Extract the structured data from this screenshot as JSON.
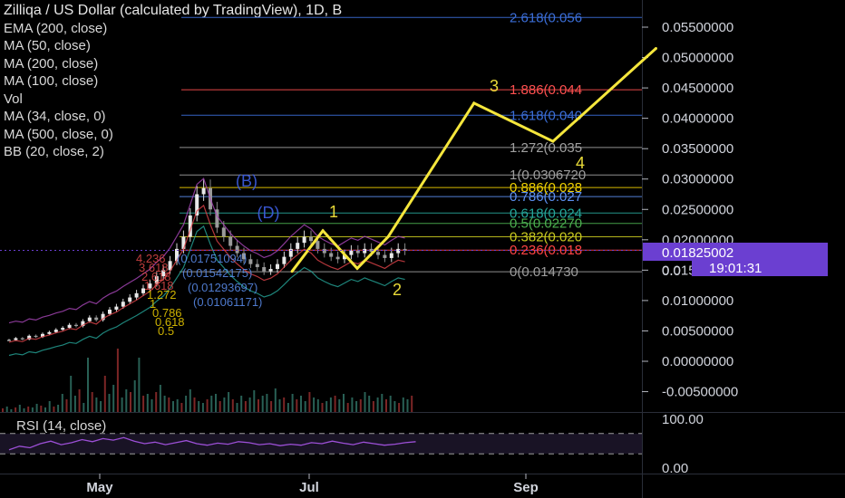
{
  "legend": {
    "title": "Zilliqa / US Dollar (calculated by TradingView), 1D, B",
    "indicators": [
      "EMA (200, close)",
      "MA (50, close)",
      "MA (200, close)",
      "MA (100, close)",
      "Vol",
      "MA (34, close, 0)",
      "MA (500, close, 0)",
      "BB (20, close, 2)"
    ]
  },
  "colors": {
    "background": "#000000",
    "price_line": "#e6d840",
    "last_price_badge": "#6b3fd1",
    "fib_0": "#9e9e9e",
    "fib_0236": "#ff4444",
    "fib_0382": "#c8c820",
    "fib_05": "#4caf50",
    "fib_0618": "#26a69a",
    "fib_0786": "#5c8ff0",
    "fib_0886": "#f0d000",
    "fib_1": "#9e9e9e",
    "fib_1272": "#a0a0a0",
    "fib_1618": "#3b6ed8",
    "fib_1886": "#ff5050",
    "wave": "#f5e63c",
    "rsi": "#9c4fd6"
  },
  "chart_data": {
    "type": "line",
    "title": "Zilliqa / US Dollar (calculated by TradingView), 1D, B",
    "y_axis": {
      "ylim": [
        -0.0085,
        0.058
      ],
      "tick_labels": [
        "0.05500000",
        "0.05000000",
        "0.04500000",
        "0.04000000",
        "0.03500000",
        "0.03000000",
        "0.02500000",
        "0.02000000",
        "0.01500000",
        "0.01000000",
        "0.00500000",
        "0.00000000",
        "-0.00500000"
      ],
      "ticks": [
        0.055,
        0.05,
        0.045,
        0.04,
        0.035,
        0.03,
        0.025,
        0.02,
        0.015,
        0.01,
        0.005,
        0.0,
        -0.005
      ]
    },
    "x_axis": {
      "tick_labels": [
        "May",
        "Jul",
        "Sep"
      ]
    },
    "last_price": {
      "label": "0.01825002",
      "value": 0.01825002,
      "countdown": "19:01:31",
      "partial_label": "0.0"
    },
    "fib_levels": [
      {
        "ratio": "0",
        "label": "0(0.014730",
        "value": 0.01473
      },
      {
        "ratio": "0.236",
        "label": "0.236(0.018",
        "value": 0.0183
      },
      {
        "ratio": "0.382",
        "label": "0.382(0.020",
        "value": 0.0205
      },
      {
        "ratio": "0.5",
        "label": "0.5(0.02270",
        "value": 0.0227
      },
      {
        "ratio": "0.618",
        "label": "0.618(0.024",
        "value": 0.0244
      },
      {
        "ratio": "0.786",
        "label": "0.786(0.027",
        "value": 0.0271
      },
      {
        "ratio": "0.886",
        "label": "0.886(0.028",
        "value": 0.0286
      },
      {
        "ratio": "1",
        "label": "1(0.0306720",
        "value": 0.03067
      },
      {
        "ratio": "1.272",
        "label": "1.272(0.035",
        "value": 0.0352
      },
      {
        "ratio": "1.618",
        "label": "1.618(0.040",
        "value": 0.0405
      },
      {
        "ratio": "1.886",
        "label": "1.886(0.044",
        "value": 0.0447
      },
      {
        "ratio": "2.618",
        "label": "2.618(0.056",
        "value": 0.0566
      }
    ],
    "wave_labels": [
      "1",
      "2",
      "3",
      "4",
      "(B)",
      "(D)"
    ],
    "wave_path": [
      {
        "date": "Jun 26",
        "value": 0.0148
      },
      {
        "date": "Jul 5",
        "value": 0.0215
      },
      {
        "date": "Jul 15",
        "value": 0.0153
      },
      {
        "date": "Jul 24",
        "value": 0.0205
      },
      {
        "date": "Aug 18",
        "value": 0.0425
      },
      {
        "date": "Sep 10",
        "value": 0.0362
      },
      {
        "date": "Oct 10",
        "value": 0.0515
      }
    ],
    "left_fib_labels": [
      "4.236",
      "3.618",
      "2.618",
      "1.618",
      "1.272",
      "1",
      "0.786",
      "0.618",
      "0.5"
    ],
    "left_fib_label_texts": [
      "(0.01751094)",
      "(0.01542175)",
      "(0.01293697)",
      "(0.01061171)"
    ],
    "rsi": {
      "label": "RSI (14, close)",
      "tick_labels": [
        "100.00",
        "0.00"
      ],
      "upper_band": 70,
      "lower_band": 30,
      "values": [
        38,
        45,
        42,
        50,
        55,
        48,
        52,
        58,
        54,
        60,
        57,
        62,
        55,
        50,
        53,
        48,
        52,
        56,
        50,
        47,
        51,
        49,
        54,
        52,
        48,
        50,
        46,
        49,
        47,
        52,
        50,
        55,
        51,
        48,
        53,
        50,
        47,
        49,
        52,
        54
      ]
    },
    "volume": [
      4,
      6,
      3,
      5,
      8,
      4,
      6,
      5,
      9,
      7,
      5,
      12,
      6,
      8,
      20,
      14,
      40,
      18,
      25,
      10,
      60,
      22,
      16,
      12,
      40,
      20,
      30,
      70,
      16,
      25,
      22,
      35,
      60,
      18,
      20,
      14,
      22,
      30,
      18,
      16,
      12,
      14,
      10,
      18,
      25,
      16,
      12,
      10,
      14,
      18,
      20,
      12,
      16,
      22,
      14,
      10,
      18,
      12,
      16,
      24,
      14,
      18,
      20,
      12,
      26,
      14,
      16,
      10,
      20,
      14,
      18,
      12,
      22,
      16,
      14,
      10,
      12,
      16,
      18,
      14,
      20,
      10,
      16,
      12,
      14,
      22,
      18,
      12,
      16,
      20,
      14,
      18,
      12,
      10,
      16,
      14,
      18
    ]
  }
}
